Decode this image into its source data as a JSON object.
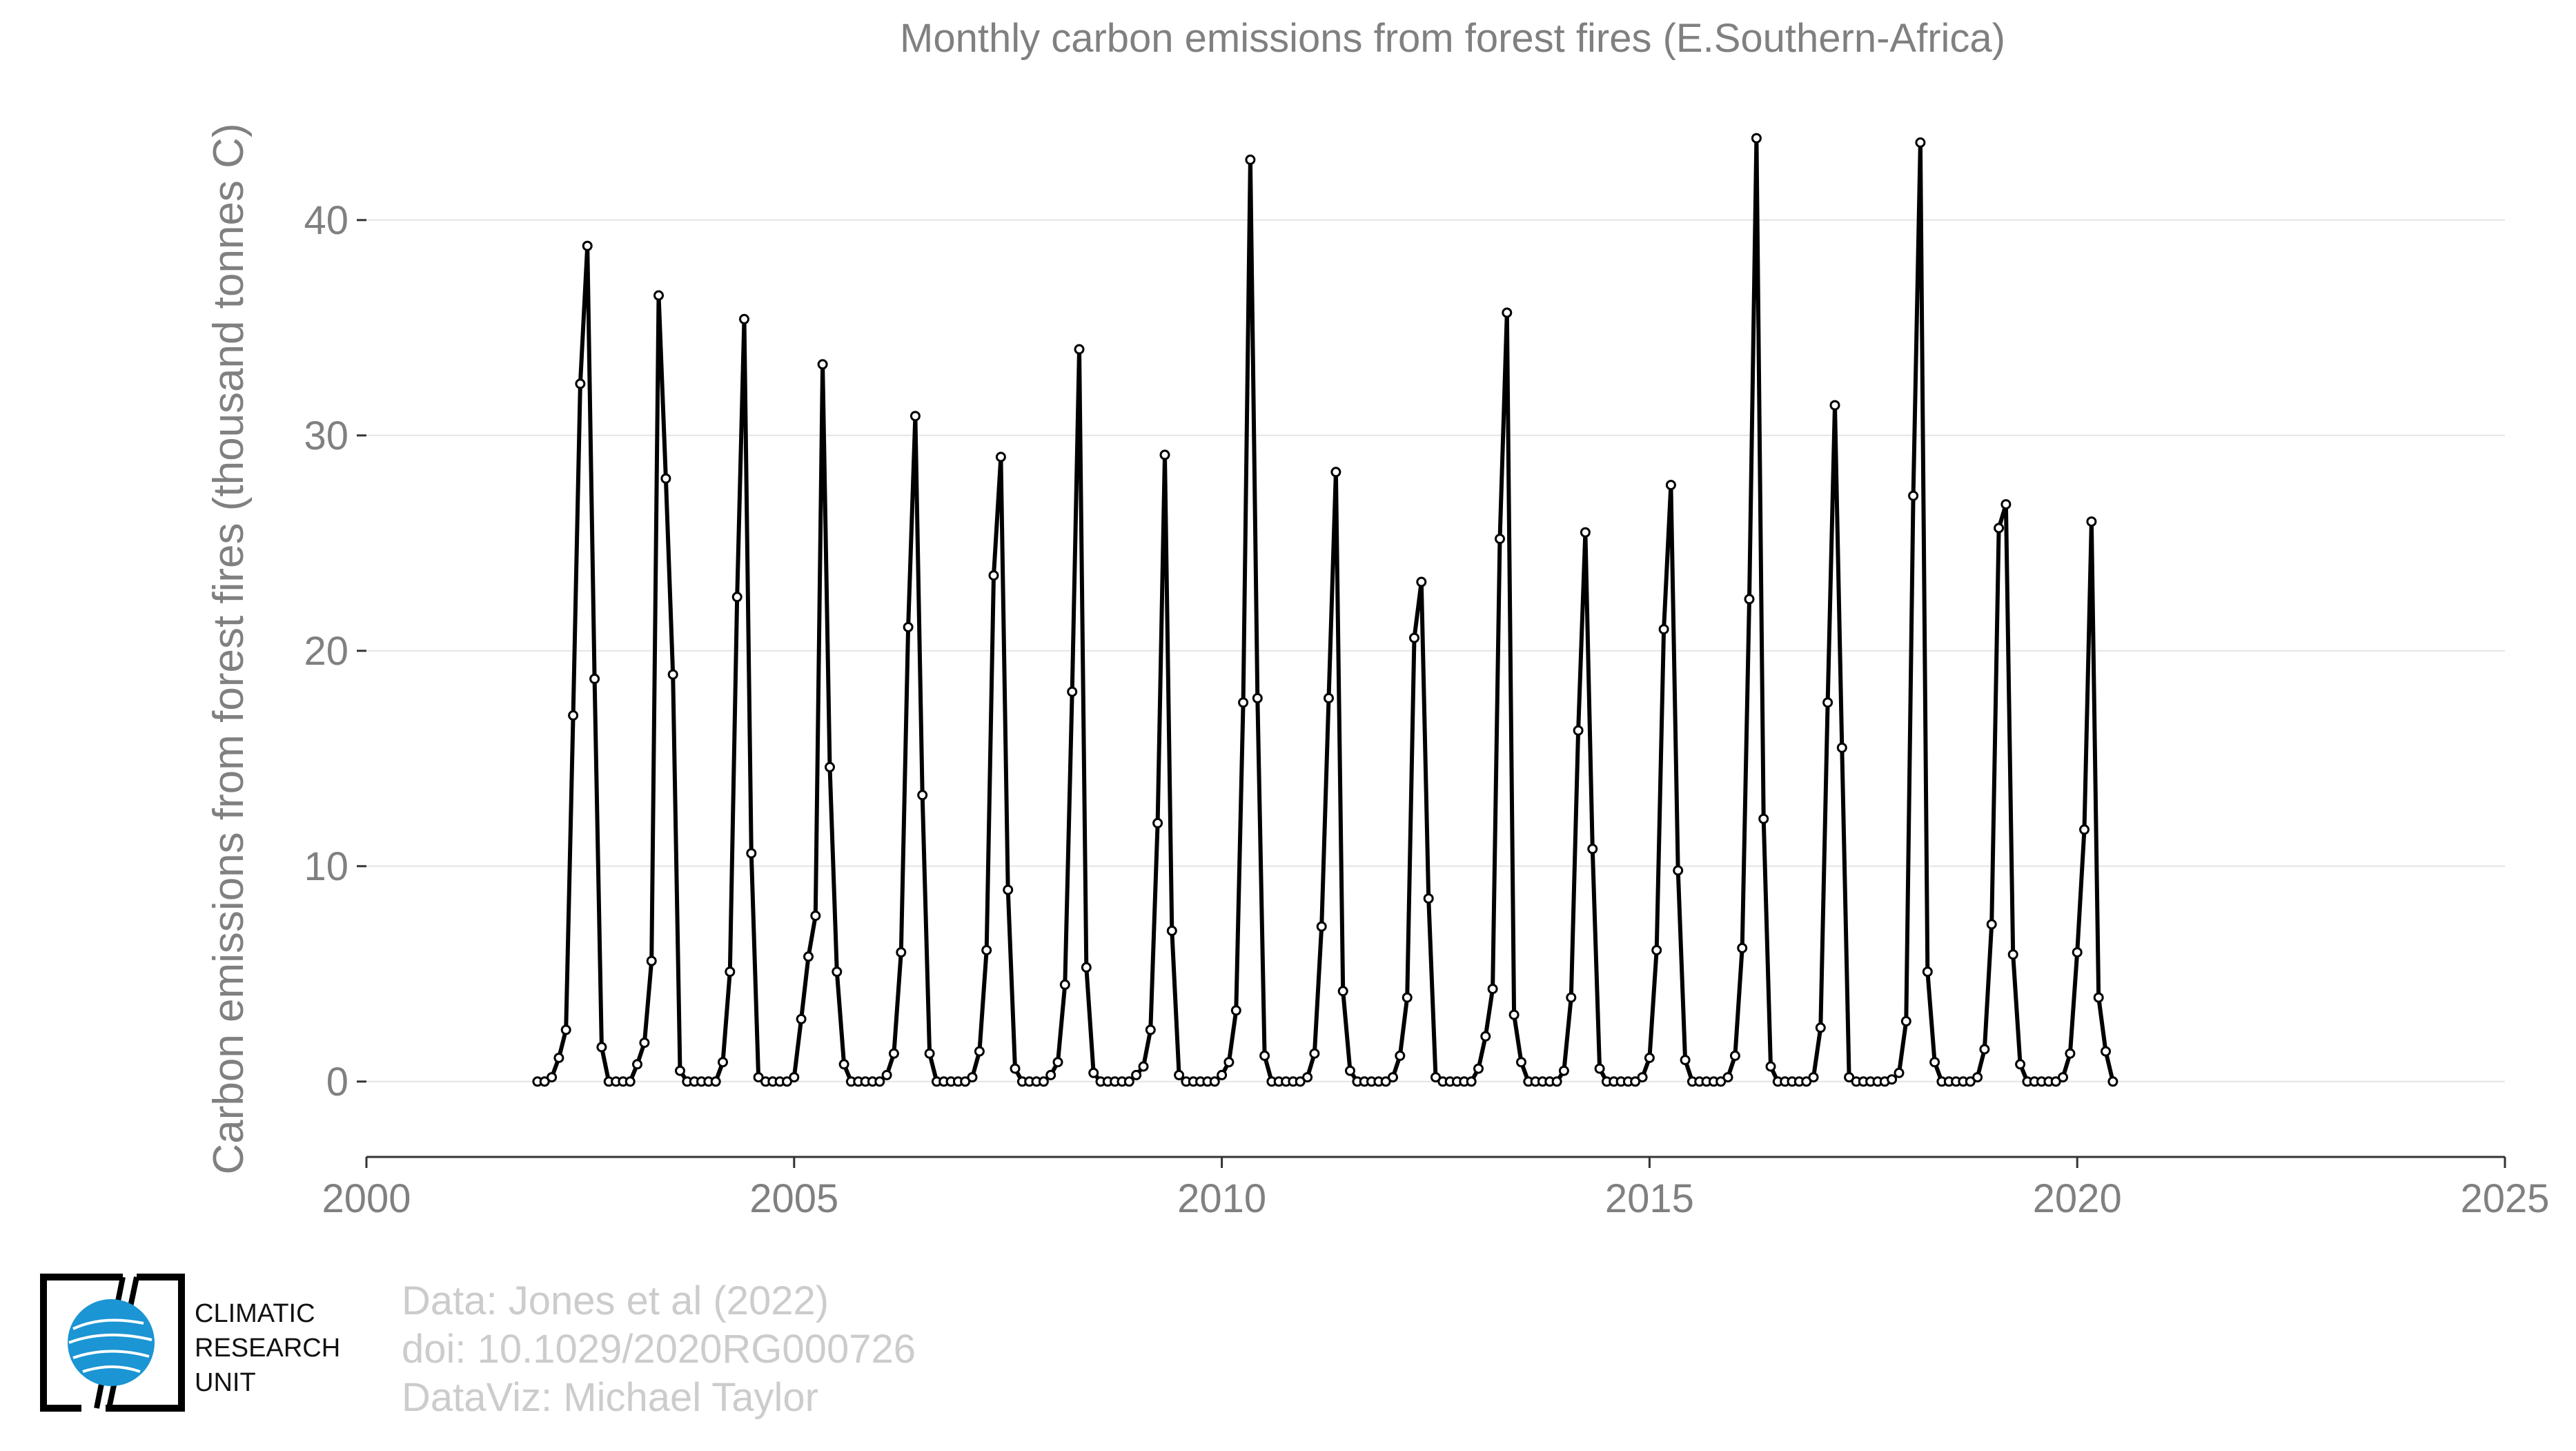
{
  "chart_data": {
    "type": "line",
    "title": "Monthly carbon emissions from forest fires (E.Southern-Africa)",
    "xlabel": "",
    "ylabel": "Carbon emissions from forest fires (thousand tonnes C)",
    "xlim": [
      2000,
      2025
    ],
    "ylim": [
      -3.5,
      46.5
    ],
    "x_ticks": [
      2000,
      2005,
      2010,
      2015,
      2020,
      2025
    ],
    "y_ticks": [
      0,
      10,
      20,
      30,
      40
    ],
    "grid": "horizontal",
    "legend": "none",
    "line_color": "#000000",
    "marker_fill": "#ffffff",
    "series": [
      {
        "start": "2002-01",
        "frequency": "monthly",
        "values": [
          0,
          0,
          0.2,
          1.1,
          2.4,
          17.0,
          32.4,
          38.8,
          18.7,
          1.6,
          0,
          0,
          0,
          0,
          0.8,
          1.8,
          5.6,
          36.5,
          28.0,
          18.9,
          0.5,
          0,
          0,
          0,
          0,
          0,
          0.9,
          5.1,
          22.5,
          35.4,
          10.6,
          0.2,
          0,
          0,
          0,
          0,
          0.2,
          2.9,
          5.8,
          7.7,
          33.3,
          14.6,
          5.1,
          0.8,
          0,
          0,
          0,
          0,
          0,
          0.3,
          1.3,
          6.0,
          21.1,
          30.9,
          13.3,
          1.3,
          0,
          0,
          0,
          0,
          0,
          0.2,
          1.4,
          6.1,
          23.5,
          29.0,
          8.9,
          0.6,
          0,
          0,
          0,
          0,
          0.3,
          0.9,
          4.5,
          18.1,
          34.0,
          5.3,
          0.4,
          0,
          0,
          0,
          0,
          0,
          0.3,
          0.7,
          2.4,
          12.0,
          29.1,
          7.0,
          0.3,
          0,
          0,
          0,
          0,
          0,
          0.3,
          0.9,
          3.3,
          17.6,
          42.8,
          17.8,
          1.2,
          0,
          0,
          0,
          0,
          0,
          0.2,
          1.3,
          7.2,
          17.8,
          28.3,
          4.2,
          0.5,
          0,
          0,
          0,
          0,
          0,
          0.2,
          1.2,
          3.9,
          20.6,
          23.2,
          8.5,
          0.2,
          0,
          0,
          0,
          0,
          0,
          0.6,
          2.1,
          4.3,
          25.2,
          35.7,
          3.1,
          0.9,
          0,
          0,
          0,
          0,
          0,
          0.5,
          3.9,
          16.3,
          25.5,
          10.8,
          0.6,
          0,
          0,
          0,
          0,
          0,
          0.2,
          1.1,
          6.1,
          21.0,
          27.7,
          9.8,
          1.0,
          0,
          0,
          0,
          0,
          0,
          0.2,
          1.2,
          6.2,
          22.4,
          43.8,
          12.2,
          0.7,
          0,
          0,
          0,
          0,
          0,
          0.2,
          2.5,
          17.6,
          31.4,
          15.5,
          0.2,
          0,
          0,
          0,
          0,
          0,
          0.1,
          0.4,
          2.8,
          27.2,
          43.6,
          5.1,
          0.9,
          0,
          0,
          0,
          0,
          0,
          0.2,
          1.5,
          7.3,
          25.7,
          26.8,
          5.9,
          0.8,
          0,
          0,
          0,
          0,
          0,
          0.2,
          1.3,
          6.0,
          11.7,
          26.0,
          3.9,
          1.4,
          0
        ]
      }
    ]
  },
  "credits": {
    "line1": "Data: Jones et al (2022)",
    "line2": "doi: 10.1029/2020RG000726",
    "line3": "DataViz: Michael Taylor"
  },
  "logo": {
    "line1": "CLIMATIC",
    "line2": "RESEARCH",
    "line3": "UNIT",
    "globe_color": "#1b95d4"
  }
}
